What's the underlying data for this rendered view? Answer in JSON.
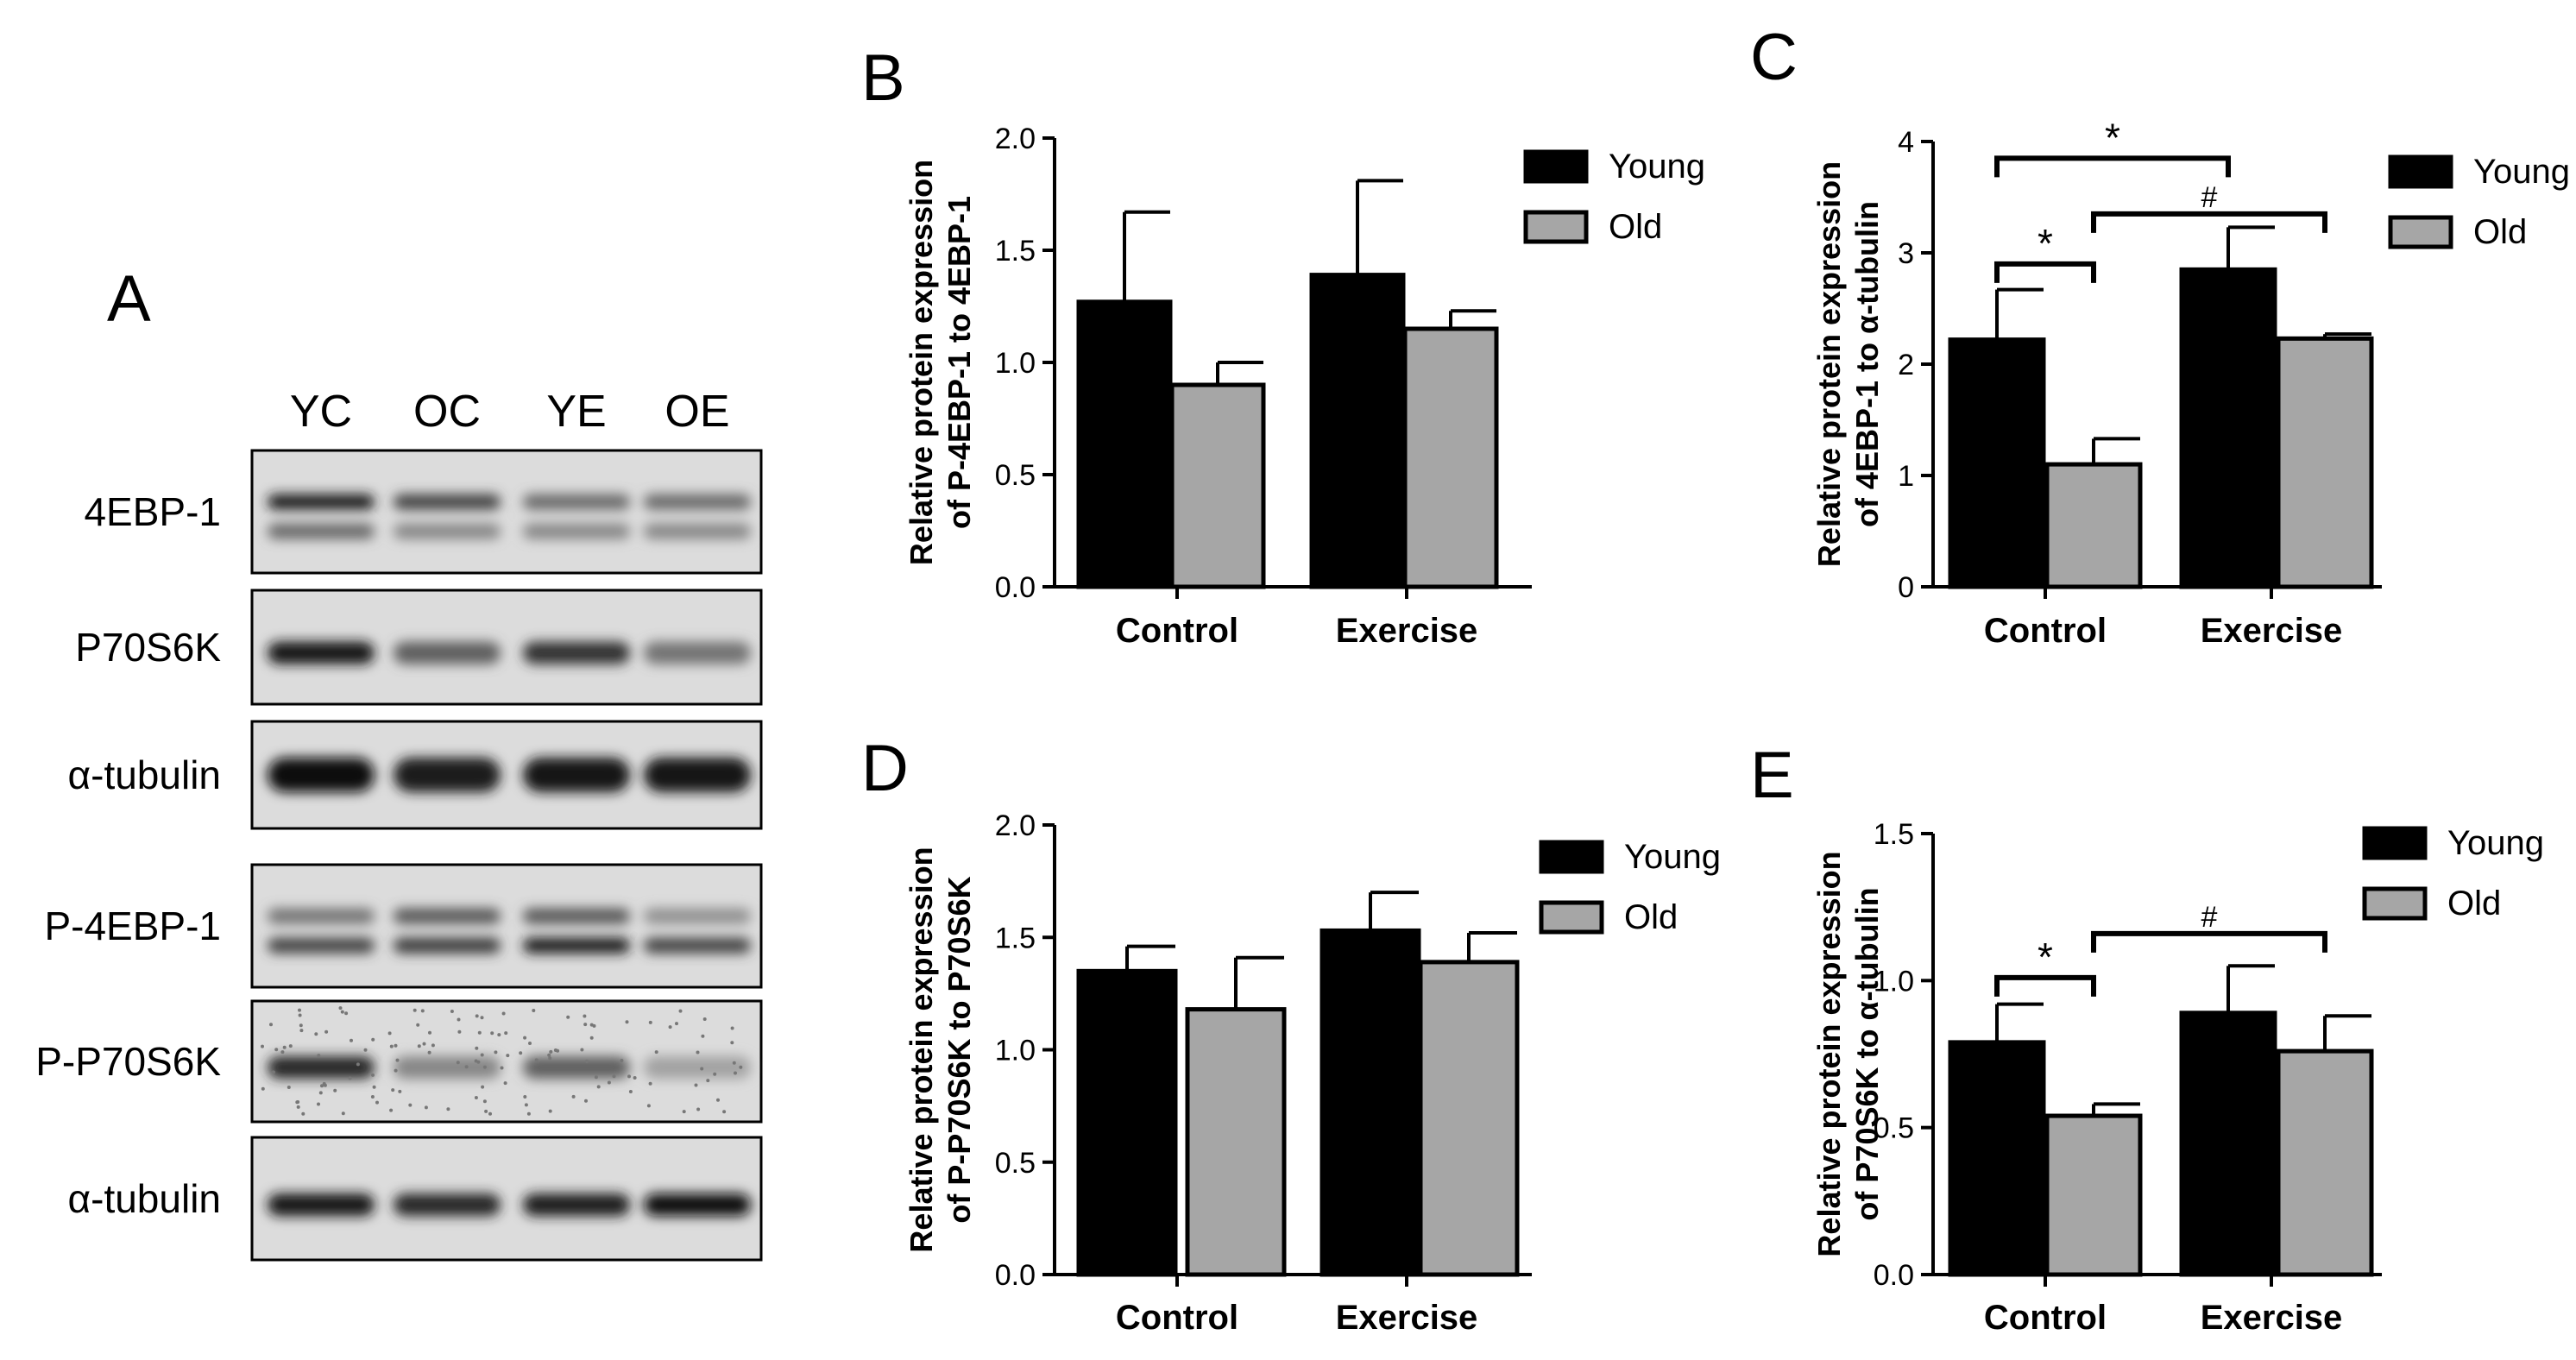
{
  "panel_a": {
    "letter": "A",
    "lanes": [
      "YC",
      "OC",
      "YE",
      "OE"
    ],
    "rows": [
      {
        "label": "4EBP-1",
        "bands": [
          [
            0.9,
            0.7,
            0.5,
            0.5
          ],
          [
            0.5,
            0.35,
            0.35,
            0.35
          ]
        ],
        "style": "double"
      },
      {
        "label": "P70S6K",
        "bands": [
          [
            0.95,
            0.55,
            0.8,
            0.45
          ]
        ],
        "style": "single"
      },
      {
        "label": "α-tubulin",
        "bands": [
          [
            1.0,
            0.9,
            0.95,
            0.95
          ]
        ],
        "style": "thick"
      },
      {
        "label": "P-4EBP-1",
        "bands": [
          [
            0.45,
            0.6,
            0.6,
            0.3
          ],
          [
            0.7,
            0.75,
            0.9,
            0.7
          ]
        ],
        "style": "double"
      },
      {
        "label": "P-P70S6K",
        "bands": [
          [
            0.85,
            0.35,
            0.55,
            0.2
          ]
        ],
        "style": "speckled"
      },
      {
        "label": "α-tubulin",
        "bands": [
          [
            0.95,
            0.85,
            0.9,
            1.0
          ]
        ],
        "style": "single"
      }
    ]
  },
  "chart_data": [
    {
      "letter": "B",
      "type": "bar",
      "categories": [
        "Control",
        "Exercise"
      ],
      "ylabel": [
        "Relative protein expression",
        "of P-4EBP-1 to 4EBP-1"
      ],
      "ylim": [
        0,
        2.0
      ],
      "yticks": [
        "0.0",
        "0.5",
        "1.0",
        "1.5",
        "2.0"
      ],
      "series": [
        {
          "name": "Young",
          "values": [
            1.27,
            1.39
          ],
          "errors": [
            0.4,
            0.42
          ],
          "color": "#000000"
        },
        {
          "name": "Old",
          "values": [
            0.9,
            1.15
          ],
          "errors": [
            0.1,
            0.08
          ],
          "color": "#a6a6a6"
        }
      ],
      "annotations": []
    },
    {
      "letter": "C",
      "type": "bar",
      "categories": [
        "Control",
        "Exercise"
      ],
      "ylabel": [
        "Relative protein expression",
        "of 4EBP-1 to α-tubulin"
      ],
      "ylim": [
        0,
        4
      ],
      "yticks": [
        "0",
        "1",
        "2",
        "3",
        "4"
      ],
      "series": [
        {
          "name": "Young",
          "values": [
            2.22,
            2.85
          ],
          "errors": [
            0.45,
            0.38
          ],
          "color": "#000000"
        },
        {
          "name": "Old",
          "values": [
            1.1,
            2.23
          ],
          "errors": [
            0.23,
            0.04
          ],
          "color": "#a6a6a6"
        }
      ],
      "annotations": [
        {
          "from": [
            0,
            0
          ],
          "to": [
            1,
            0
          ],
          "y": 3.85,
          "label": "*",
          "kind": "star"
        },
        {
          "from": [
            0,
            0
          ],
          "to": [
            0,
            1
          ],
          "y": 2.9,
          "label": "*",
          "kind": "star"
        },
        {
          "from": [
            0,
            1
          ],
          "to": [
            1,
            1
          ],
          "y": 3.35,
          "label": "#",
          "kind": "hash"
        }
      ]
    },
    {
      "letter": "D",
      "type": "bar",
      "categories": [
        "Control",
        "Exercise"
      ],
      "ylabel": [
        "Relative protein expression",
        "of P-P70S6K to P70S6K"
      ],
      "ylim": [
        0,
        2.0
      ],
      "yticks": [
        "0.0",
        "0.5",
        "1.0",
        "1.5",
        "2.0"
      ],
      "series": [
        {
          "name": "Young",
          "values": [
            1.35,
            1.53
          ],
          "errors": [
            0.11,
            0.17
          ],
          "color": "#000000"
        },
        {
          "name": "Old",
          "values": [
            1.18,
            1.39
          ],
          "errors": [
            0.23,
            0.13
          ],
          "color": "#a6a6a6"
        }
      ],
      "annotations": []
    },
    {
      "letter": "E",
      "type": "bar",
      "categories": [
        "Control",
        "Exercise"
      ],
      "ylabel": [
        "Relative protein expression",
        "of P70S6K to α-tubulin"
      ],
      "ylim": [
        0,
        1.5
      ],
      "yticks": [
        "0.0",
        "0.5",
        "1.0",
        "1.5"
      ],
      "series": [
        {
          "name": "Young",
          "values": [
            0.79,
            0.89
          ],
          "errors": [
            0.13,
            0.16
          ],
          "color": "#000000"
        },
        {
          "name": "Old",
          "values": [
            0.54,
            0.76
          ],
          "errors": [
            0.04,
            0.12
          ],
          "color": "#a6a6a6"
        }
      ],
      "annotations": [
        {
          "from": [
            0,
            0
          ],
          "to": [
            0,
            1
          ],
          "y": 1.01,
          "label": "*",
          "kind": "star"
        },
        {
          "from": [
            0,
            1
          ],
          "to": [
            1,
            1
          ],
          "y": 1.16,
          "label": "#",
          "kind": "hash"
        }
      ]
    }
  ]
}
